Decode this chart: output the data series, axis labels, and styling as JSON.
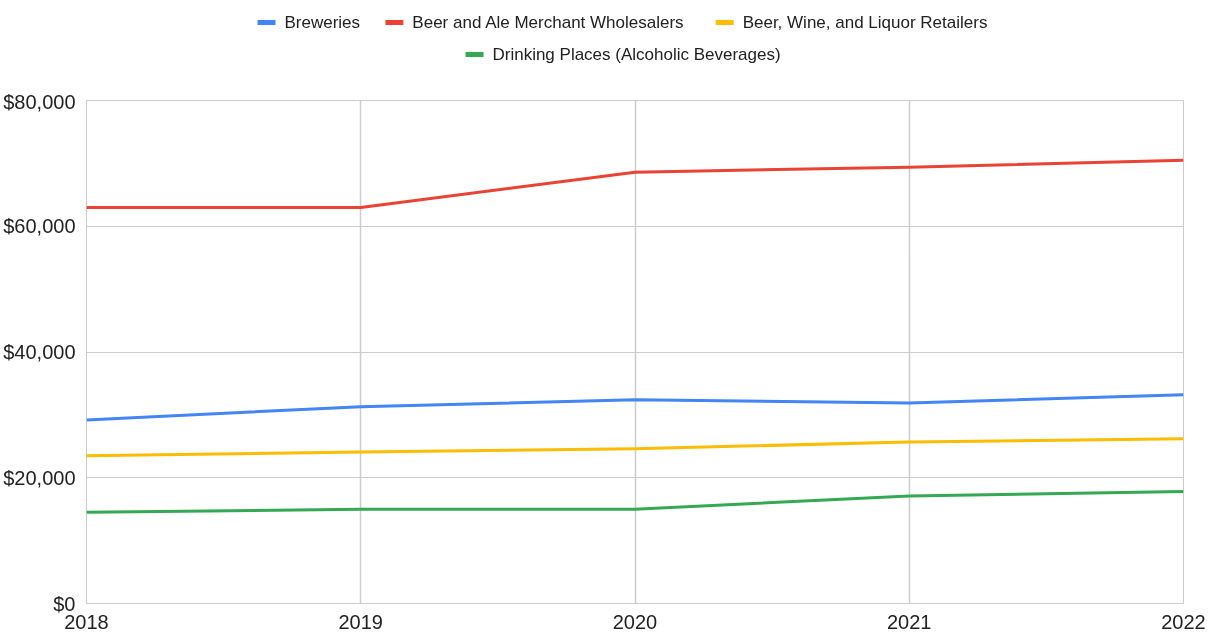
{
  "chart_data": {
    "type": "line",
    "x": [
      2018,
      2019,
      2020,
      2021,
      2022
    ],
    "series": [
      {
        "name": "Breweries",
        "color": "#4285f4",
        "values": [
          29200,
          31300,
          32400,
          31900,
          33200
        ]
      },
      {
        "name": "Beer and Ale Merchant Wholesalers",
        "color": "#ea4335",
        "values": [
          63000,
          63000,
          68600,
          69400,
          70500
        ]
      },
      {
        "name": "Beer, Wine, and Liquor Retailers",
        "color": "#fbbc04",
        "values": [
          23500,
          24100,
          24600,
          25700,
          26200
        ]
      },
      {
        "name": "Drinking Places (Alcoholic Beverages)",
        "color": "#34a853",
        "values": [
          14500,
          15000,
          15000,
          17100,
          17800
        ]
      }
    ],
    "xlim": [
      2018,
      2022
    ],
    "xticks": [
      2018,
      2019,
      2020,
      2021,
      2022
    ],
    "ylim": [
      0,
      80000
    ],
    "yticks": [
      {
        "value": 0,
        "label": "$0"
      },
      {
        "value": 20000,
        "label": "$20,000"
      },
      {
        "value": 40000,
        "label": "$40,000"
      },
      {
        "value": 60000,
        "label": "$60,000"
      },
      {
        "value": 80000,
        "label": "$80,000"
      }
    ],
    "grid": true,
    "legend": "top",
    "line_style": "solid",
    "marker": "none"
  }
}
